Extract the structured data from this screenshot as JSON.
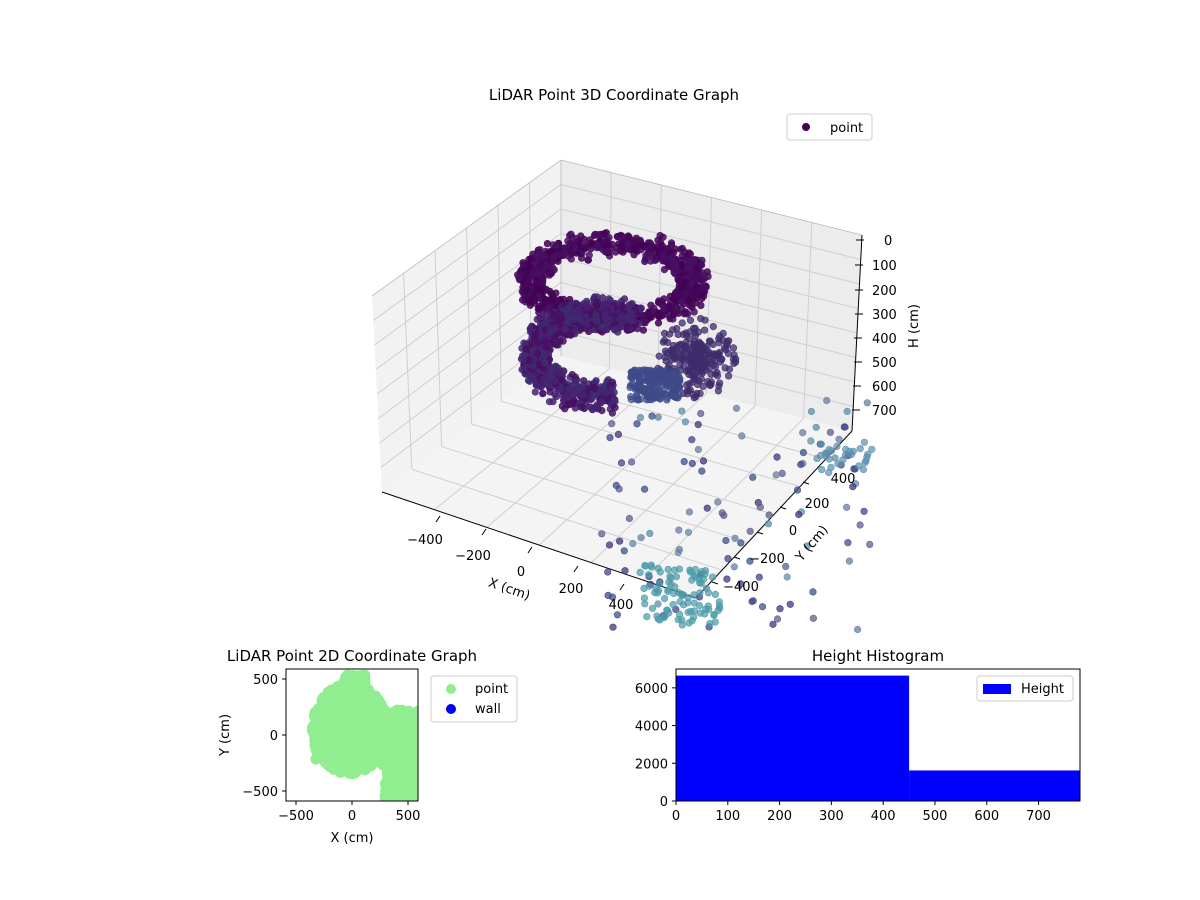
{
  "chart_data": [
    {
      "type": "scatter3d",
      "title": "LiDAR Point 3D Coordinate Graph",
      "xlabel": "X (cm)",
      "ylabel": "Y (cm)",
      "zlabel": "H (cm)",
      "xticks": [
        "−400",
        "−200",
        "0",
        "200",
        "400"
      ],
      "yticks": [
        "400",
        "200",
        "0",
        "−200",
        "−400"
      ],
      "zticks": [
        "0",
        "100",
        "200",
        "300",
        "400",
        "500",
        "600",
        "700"
      ],
      "zlim": [
        0,
        700
      ],
      "zaxis_inverted": true,
      "grid": true,
      "legend": {
        "placement": "top-right",
        "entries": [
          {
            "label": "point",
            "color": "#440154"
          }
        ]
      },
      "colormap": "viridis"
    },
    {
      "type": "scatter",
      "title": "LiDAR Point 2D Coordinate Graph",
      "xlabel": "X (cm)",
      "ylabel": "Y (cm)",
      "xlim": [
        -590,
        590
      ],
      "ylim": [
        -590,
        590
      ],
      "xticks": [
        "−500",
        "0",
        "500"
      ],
      "yticks": [
        "−500",
        "0",
        "500"
      ],
      "series": [
        {
          "name": "point",
          "color": "#90ee90"
        },
        {
          "name": "wall",
          "color": "#0000ff"
        }
      ],
      "legend": {
        "placement": "outside-right"
      }
    },
    {
      "type": "bar",
      "title": "Height Histogram",
      "bins": [
        {
          "x0": 0,
          "x1": 450,
          "count": 6650
        },
        {
          "x0": 450,
          "x1": 780,
          "count": 1620
        }
      ],
      "xlim": [
        0,
        780
      ],
      "ylim": [
        0,
        7000
      ],
      "xticks": [
        "0",
        "100",
        "200",
        "300",
        "400",
        "500",
        "600",
        "700"
      ],
      "yticks": [
        "0",
        "2000",
        "4000",
        "6000"
      ],
      "series": [
        {
          "name": "Height",
          "color": "#0000ff"
        }
      ],
      "legend": {
        "placement": "top-right"
      }
    }
  ]
}
